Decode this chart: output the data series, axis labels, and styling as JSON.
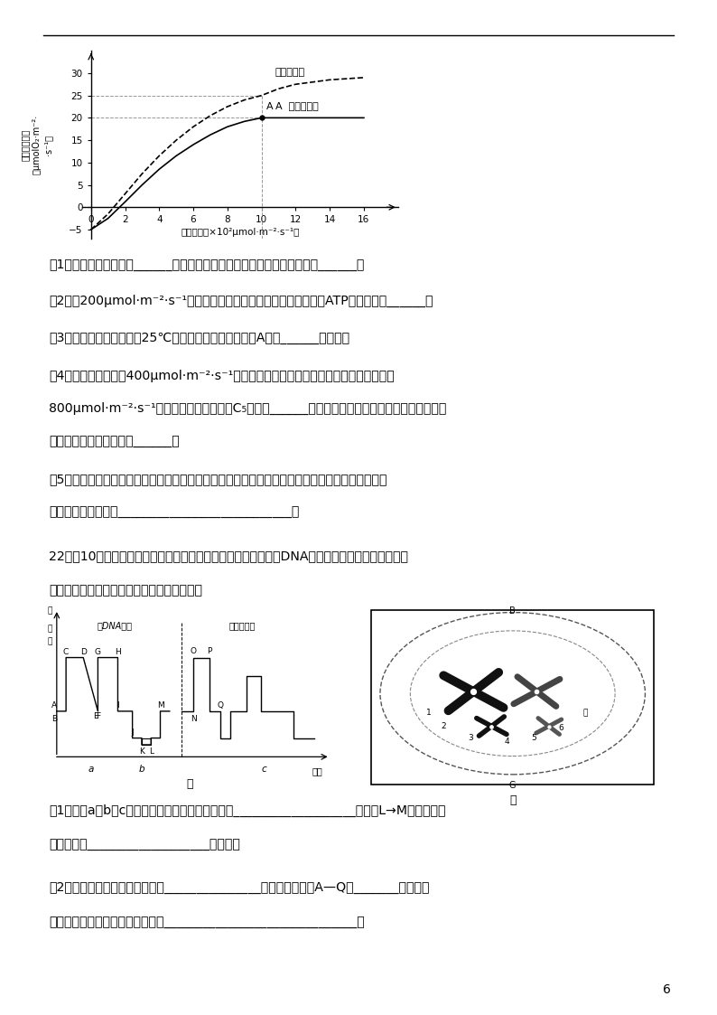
{
  "page_number": "6",
  "top_line_y": 0.965,
  "background_color": "#ffffff",
  "text_color": "#000000",
  "chart": {
    "xlim": [
      -0.5,
      18
    ],
    "ylim": [
      -7,
      35
    ],
    "xticks": [
      0,
      2,
      4,
      6,
      8,
      10,
      12,
      14,
      16
    ],
    "yticks": [
      -5,
      0,
      5,
      10,
      15,
      20,
      25,
      30
    ],
    "xlabel": "光照强度（×10²μmol·m⁻²·s⁻¹）",
    "ylabel_lines": [
      "表观光合速率",
      "（μmolO₂·m⁻²·",
      "·s⁻¹）"
    ],
    "wild_x": [
      0,
      1,
      2,
      3,
      4,
      5,
      6,
      7,
      8,
      9,
      10,
      12,
      14,
      16
    ],
    "wild_y": [
      -5.0,
      -2.5,
      1.2,
      5.0,
      8.5,
      11.5,
      14.0,
      16.2,
      18.0,
      19.2,
      20.0,
      20.0,
      20.0,
      20.0
    ],
    "mutant_x": [
      0,
      1,
      2,
      3,
      4,
      5,
      6,
      7,
      8,
      9,
      10,
      11,
      12,
      14,
      16
    ],
    "mutant_y": [
      -5.0,
      -1.5,
      3.0,
      7.5,
      11.5,
      15.0,
      18.0,
      20.5,
      22.5,
      24.0,
      25.0,
      26.5,
      27.5,
      28.5,
      29.0
    ],
    "pointA": [
      10,
      20
    ],
    "label_mutant": "突变型植株",
    "label_wild": "A  野生型植株"
  },
  "q21": [
    "（1）该实验的自变量是______，因变量检测指标是单位时间单位叶面积内______。",
    "（2）在200μmol·m⁻²·s⁻¹光强度条件下，野生型植株叶肉细胞产生ATP的细胞器有______。",
    "（3）若选择野生型植株在25℃条件下重复相关实验，则A点向______方移动。",
    "（4）若突变型植株在400μmol·m⁻²·s⁻¹光强度条件下进行该实验，突然将光强度增大到",
    "800μmol·m⁻²·s⁻¹，短时间内叶绳体内的C₅含量将______。持续一段时间之后光合速率不再增大，",
    "其主要限制性环境因素是______。",
    "（5）在高光照下，突变型植林比野生型植株光合速率高的可能原因是色素含量增加，怎样证明？请",
    "简单说明实验思路：___________________________。"
  ],
  "q22_intro1": "22．（10分）甲图示某高等动物细胞分裂和受精作用过程中，核DNA含量和染色体数目变化，乙图",
  "q22_intro2": "是该动物细胞局部结构模式图，请分析回答：",
  "q22": [
    "（1）甲图a、b、c三个阶段中，属于有丝分裂的是___________________阶段。L→M点所示过程",
    "与细胞膜的___________________性有关。",
    "（2）乙图细胞所处的分裂时期是_______________，发生在甲图中A—Q的_______段中，该",
    "细胞下一时期染色体的重要行为是______________________________。"
  ]
}
